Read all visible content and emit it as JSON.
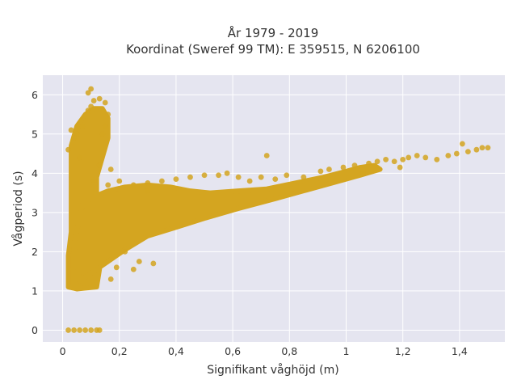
{
  "chart_data": {
    "type": "scatter",
    "title_line1": "År 1979 - 2019",
    "title_line2": "Koordinat (Sweref 99 TM): E 359515, N 6206100",
    "xlabel": "Signifikant våghöjd (m)",
    "ylabel": "Vågperiod (s)",
    "xlim": [
      -0.07,
      1.56
    ],
    "ylim": [
      -0.3,
      6.5
    ],
    "x_ticks": [
      0,
      0.2,
      0.4,
      0.6,
      0.8,
      1,
      1.2,
      1.4
    ],
    "x_tick_labels": [
      "0",
      "0,2",
      "0,4",
      "0,6",
      "0,8",
      "1",
      "1,2",
      "1,4"
    ],
    "y_ticks": [
      0,
      1,
      2,
      3,
      4,
      5,
      6
    ],
    "y_tick_labels": [
      "0",
      "1",
      "2",
      "3",
      "4",
      "5",
      "6"
    ],
    "grid": true,
    "colors": {
      "marker": "#d4a520",
      "plot_bg": "#e5e5f0",
      "grid": "#ffffff"
    },
    "series": [
      {
        "points": [
          [
            0.02,
            0
          ],
          [
            0.04,
            0
          ],
          [
            0.06,
            0
          ],
          [
            0.08,
            0
          ],
          [
            0.1,
            0
          ],
          [
            0.12,
            0
          ],
          [
            0.13,
            0
          ],
          [
            0.02,
            4.6
          ],
          [
            0.03,
            5.1
          ],
          [
            0.04,
            4.9
          ],
          [
            0.05,
            5.0
          ],
          [
            0.07,
            5.2
          ],
          [
            0.09,
            5.6
          ],
          [
            0.1,
            5.7
          ],
          [
            0.11,
            5.85
          ],
          [
            0.13,
            5.9
          ],
          [
            0.15,
            5.8
          ],
          [
            0.16,
            5.5
          ],
          [
            0.15,
            5.2
          ],
          [
            0.14,
            5.0
          ],
          [
            0.17,
            4.1
          ],
          [
            0.09,
            6.05
          ],
          [
            0.1,
            6.15
          ],
          [
            0.16,
            3.7
          ],
          [
            0.2,
            3.8
          ],
          [
            0.25,
            3.7
          ],
          [
            0.3,
            3.75
          ],
          [
            0.35,
            3.8
          ],
          [
            0.4,
            3.85
          ],
          [
            0.45,
            3.9
          ],
          [
            0.5,
            3.95
          ],
          [
            0.55,
            3.95
          ],
          [
            0.58,
            4.0
          ],
          [
            0.62,
            3.9
          ],
          [
            0.66,
            3.8
          ],
          [
            0.7,
            3.9
          ],
          [
            0.72,
            4.45
          ],
          [
            0.75,
            3.85
          ],
          [
            0.79,
            3.95
          ],
          [
            0.85,
            3.9
          ],
          [
            0.91,
            4.05
          ],
          [
            0.94,
            4.1
          ],
          [
            0.99,
            4.15
          ],
          [
            1.03,
            4.2
          ],
          [
            1.08,
            4.25
          ],
          [
            1.11,
            4.3
          ],
          [
            1.14,
            4.35
          ],
          [
            1.17,
            4.3
          ],
          [
            1.2,
            4.35
          ],
          [
            1.22,
            4.4
          ],
          [
            1.25,
            4.45
          ],
          [
            1.28,
            4.4
          ],
          [
            1.32,
            4.35
          ],
          [
            1.36,
            4.45
          ],
          [
            1.39,
            4.5
          ],
          [
            1.41,
            4.75
          ],
          [
            1.43,
            4.55
          ],
          [
            1.46,
            4.6
          ],
          [
            1.48,
            4.65
          ],
          [
            1.5,
            4.65
          ],
          [
            1.06,
            4.0
          ],
          [
            1.19,
            4.15
          ],
          [
            0.3,
            3.55
          ],
          [
            0.22,
            2.0
          ],
          [
            0.25,
            1.55
          ],
          [
            0.27,
            1.75
          ],
          [
            0.32,
            1.7
          ],
          [
            0.17,
            1.3
          ],
          [
            0.19,
            1.6
          ],
          [
            0.11,
            3.8
          ],
          [
            0.13,
            4.2
          ],
          [
            0.06,
            4.4
          ]
        ]
      }
    ]
  }
}
